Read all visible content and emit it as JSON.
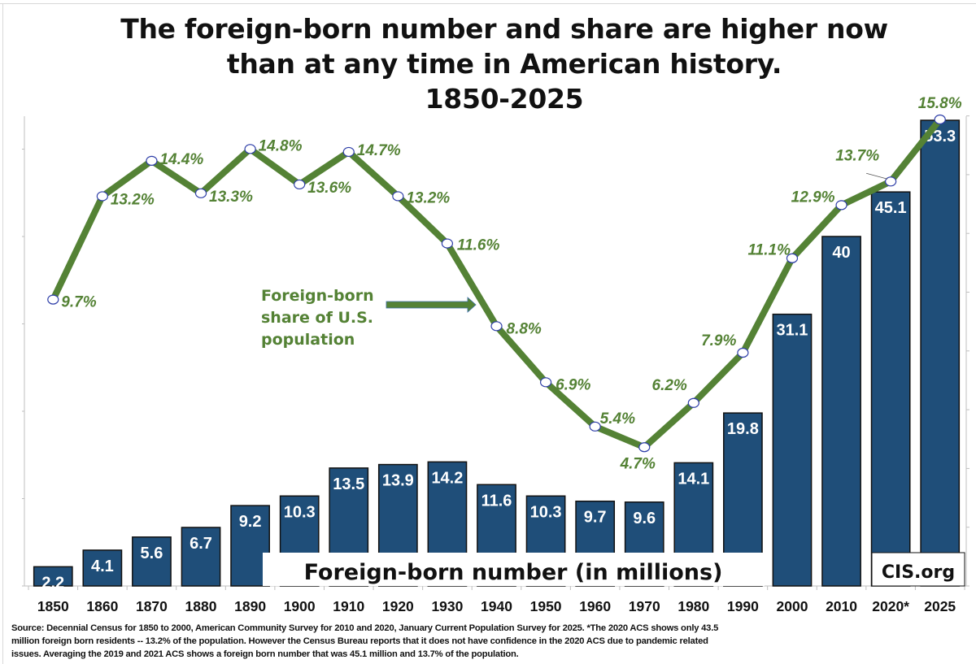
{
  "title_lines": [
    "The foreign-born number and share are higher now",
    "than at any time in American history.",
    "1850-2025"
  ],
  "chart_data": {
    "type": "bar+line",
    "title": "The foreign-born number and share are higher now than at any time in American history. 1850-2025",
    "categories": [
      "1850",
      "1860",
      "1870",
      "1880",
      "1890",
      "1900",
      "1910",
      "1920",
      "1930",
      "1940",
      "1950",
      "1960",
      "1970",
      "1980",
      "1990",
      "2000",
      "2010",
      "2020*",
      "2025"
    ],
    "series": [
      {
        "name": "Foreign-born number (in millions)",
        "type": "bar",
        "color": "#1f4e79",
        "values": [
          2.2,
          4.1,
          5.6,
          6.7,
          9.2,
          10.3,
          13.5,
          13.9,
          14.2,
          11.6,
          10.3,
          9.7,
          9.6,
          14.1,
          19.8,
          31.1,
          40,
          45.1,
          53.3
        ],
        "labels": [
          "2.2",
          "4.1",
          "5.6",
          "6.7",
          "9.2",
          "10.3",
          "13.5",
          "13.9",
          "14.2",
          "11.6",
          "10.3",
          "9.7",
          "9.6",
          "14.1",
          "19.8",
          "31.1",
          "40",
          "45.1",
          "53.3"
        ]
      },
      {
        "name": "Foreign-born share of U.S. population",
        "type": "line",
        "color": "#548235",
        "values": [
          9.7,
          13.2,
          14.4,
          13.3,
          14.8,
          13.6,
          14.7,
          13.2,
          11.6,
          8.8,
          6.9,
          5.4,
          4.7,
          6.2,
          7.9,
          11.1,
          12.9,
          13.7,
          15.8
        ],
        "labels": [
          "9.7%",
          "13.2%",
          "14.4%",
          "13.3%",
          "14.8%",
          "13.6%",
          "14.7%",
          "13.2%",
          "11.6%",
          "8.8%",
          "6.9%",
          "5.4%",
          "4.7%",
          "6.2%",
          "7.9%",
          "11.1%",
          "12.9%",
          "13.7%",
          "15.8%"
        ]
      }
    ],
    "bar_ylim": [
      0,
      53.3
    ],
    "line_ylim": [
      0,
      15.8
    ],
    "xlabel": "",
    "ylabel": "",
    "grid": false,
    "legend": "none"
  },
  "annotations": {
    "line_callout": [
      "Foreign-born",
      "share of U.S.",
      "population"
    ],
    "bar_label": "Foreign-born number (in millions)",
    "brand": "CIS.org"
  },
  "source_lines": [
    "Source: Decennial Census for 1850 to 2000, American Community Survey for 2010 and 2020, January Current Population Survey for 2025.  *The 2020 ACS shows only 43.5",
    "million foreign born residents -- 13.2% of the population. However the Census Bureau reports that it does not have confidence in the 2020 ACS due to pandemic related",
    "issues.  Averaging the 2019 and 2021 ACS shows a foreign born number that was 45.1 million and 13.7% of the population."
  ],
  "colors": {
    "bar": "#1f4e79",
    "line": "#548235",
    "marker_stroke": "#2e3ea8",
    "axis": "#bfbfbf"
  }
}
